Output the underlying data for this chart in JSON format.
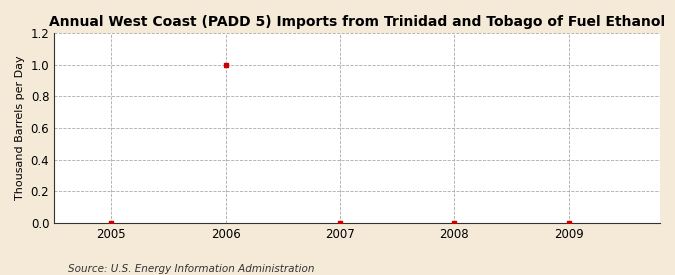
{
  "title": "Annual West Coast (PADD 5) Imports from Trinidad and Tobago of Fuel Ethanol",
  "ylabel": "Thousand Barrels per Day",
  "source": "Source: U.S. Energy Information Administration",
  "x_data": [
    2005,
    2006,
    2007,
    2008,
    2009
  ],
  "y_data": [
    0.0,
    1.0,
    0.0,
    0.0,
    0.0
  ],
  "xlim": [
    2004.5,
    2009.8
  ],
  "ylim": [
    0.0,
    1.2
  ],
  "yticks": [
    0.0,
    0.2,
    0.4,
    0.6,
    0.8,
    1.0,
    1.2
  ],
  "xticks": [
    2005,
    2006,
    2007,
    2008,
    2009
  ],
  "marker_color": "#cc0000",
  "marker": "s",
  "marker_size": 3.5,
  "grid_color": "#aaaaaa",
  "grid_linestyle": "--",
  "figure_background": "#f5ead8",
  "axes_background": "#ffffff",
  "title_fontsize": 10,
  "axis_label_fontsize": 8,
  "tick_fontsize": 8.5,
  "source_fontsize": 7.5
}
